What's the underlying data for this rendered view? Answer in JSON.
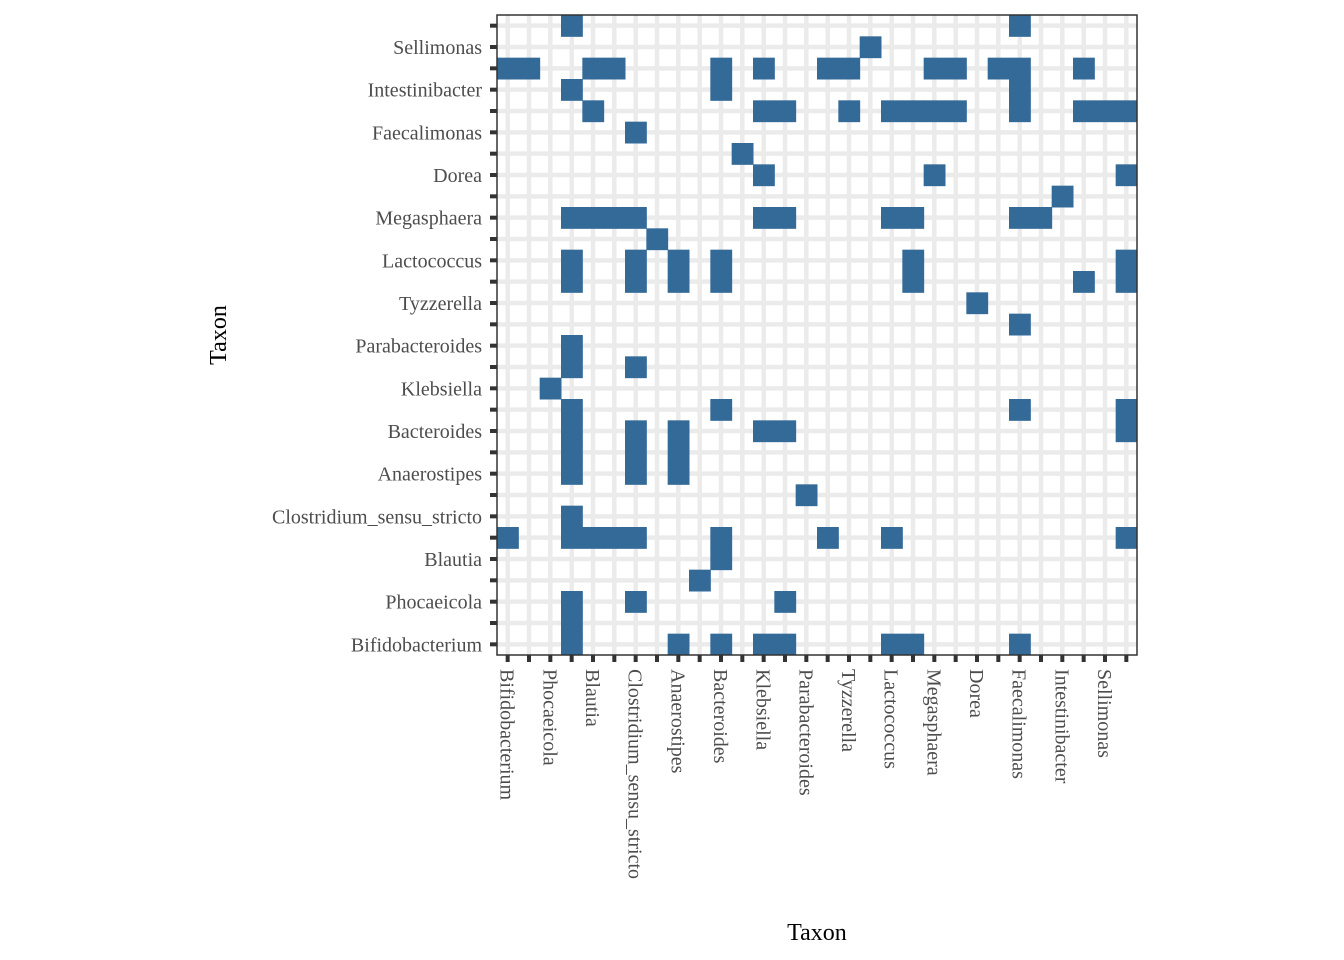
{
  "chart_data": {
    "type": "heatmap",
    "xlabel": "Taxon",
    "ylabel": "Taxon",
    "axis_labels": [
      "Bifidobacterium",
      "Phocaeicola",
      "Blautia",
      "Clostridium_sensu_stricto",
      "Anaerostipes",
      "Bacteroides",
      "Klebsiella",
      "Parabacteroides",
      "Tyzzerella",
      "Lactococcus",
      "Megasphaera",
      "Dorea",
      "Faecalimonas",
      "Intestinibacter",
      "Sellimonas"
    ],
    "n_cells": 30,
    "labeled_cells": [
      0,
      2,
      4,
      6,
      8,
      10,
      12,
      14,
      16,
      18,
      20,
      22,
      24,
      26,
      28
    ],
    "filled_cells": [
      [
        3,
        0
      ],
      [
        8,
        0
      ],
      [
        10,
        0
      ],
      [
        12,
        0
      ],
      [
        13,
        0
      ],
      [
        18,
        0
      ],
      [
        19,
        0
      ],
      [
        24,
        0
      ],
      [
        3,
        1
      ],
      [
        3,
        2
      ],
      [
        6,
        2
      ],
      [
        13,
        2
      ],
      [
        9,
        3
      ],
      [
        10,
        4
      ],
      [
        0,
        5
      ],
      [
        3,
        5
      ],
      [
        4,
        5
      ],
      [
        5,
        5
      ],
      [
        6,
        5
      ],
      [
        10,
        5
      ],
      [
        15,
        5
      ],
      [
        18,
        5
      ],
      [
        29,
        5
      ],
      [
        3,
        6
      ],
      [
        14,
        7
      ],
      [
        3,
        8
      ],
      [
        6,
        8
      ],
      [
        8,
        8
      ],
      [
        3,
        9
      ],
      [
        6,
        9
      ],
      [
        8,
        9
      ],
      [
        3,
        10
      ],
      [
        6,
        10
      ],
      [
        8,
        10
      ],
      [
        12,
        10
      ],
      [
        13,
        10
      ],
      [
        29,
        10
      ],
      [
        3,
        11
      ],
      [
        10,
        11
      ],
      [
        24,
        11
      ],
      [
        29,
        11
      ],
      [
        2,
        12
      ],
      [
        3,
        13
      ],
      [
        6,
        13
      ],
      [
        3,
        14
      ],
      [
        24,
        15
      ],
      [
        22,
        16
      ],
      [
        3,
        17
      ],
      [
        6,
        17
      ],
      [
        8,
        17
      ],
      [
        10,
        17
      ],
      [
        19,
        17
      ],
      [
        27,
        17
      ],
      [
        29,
        17
      ],
      [
        3,
        18
      ],
      [
        6,
        18
      ],
      [
        8,
        18
      ],
      [
        10,
        18
      ],
      [
        19,
        18
      ],
      [
        29,
        18
      ],
      [
        7,
        19
      ],
      [
        3,
        20
      ],
      [
        4,
        20
      ],
      [
        5,
        20
      ],
      [
        6,
        20
      ],
      [
        12,
        20
      ],
      [
        13,
        20
      ],
      [
        18,
        20
      ],
      [
        19,
        20
      ],
      [
        24,
        20
      ],
      [
        25,
        20
      ],
      [
        26,
        21
      ],
      [
        12,
        22
      ],
      [
        20,
        22
      ],
      [
        29,
        22
      ],
      [
        11,
        23
      ],
      [
        6,
        24
      ],
      [
        4,
        25
      ],
      [
        12,
        25
      ],
      [
        13,
        25
      ],
      [
        16,
        25
      ],
      [
        18,
        25
      ],
      [
        19,
        25
      ],
      [
        20,
        25
      ],
      [
        21,
        25
      ],
      [
        24,
        25
      ],
      [
        27,
        25
      ],
      [
        28,
        25
      ],
      [
        29,
        25
      ],
      [
        3,
        26
      ],
      [
        10,
        26
      ],
      [
        24,
        26
      ],
      [
        0,
        27
      ],
      [
        1,
        27
      ],
      [
        4,
        27
      ],
      [
        5,
        27
      ],
      [
        10,
        27
      ],
      [
        12,
        27
      ],
      [
        15,
        27
      ],
      [
        16,
        27
      ],
      [
        20,
        27
      ],
      [
        21,
        27
      ],
      [
        23,
        27
      ],
      [
        24,
        27
      ],
      [
        27,
        27
      ],
      [
        17,
        28
      ],
      [
        3,
        29
      ],
      [
        24,
        29
      ]
    ],
    "grid": true,
    "colors": {
      "fill": "#336a98",
      "panel_bg": "#ffffff",
      "grid": "#ebebeb",
      "border": "#333333",
      "tick_label": "#4d4d4d"
    }
  }
}
